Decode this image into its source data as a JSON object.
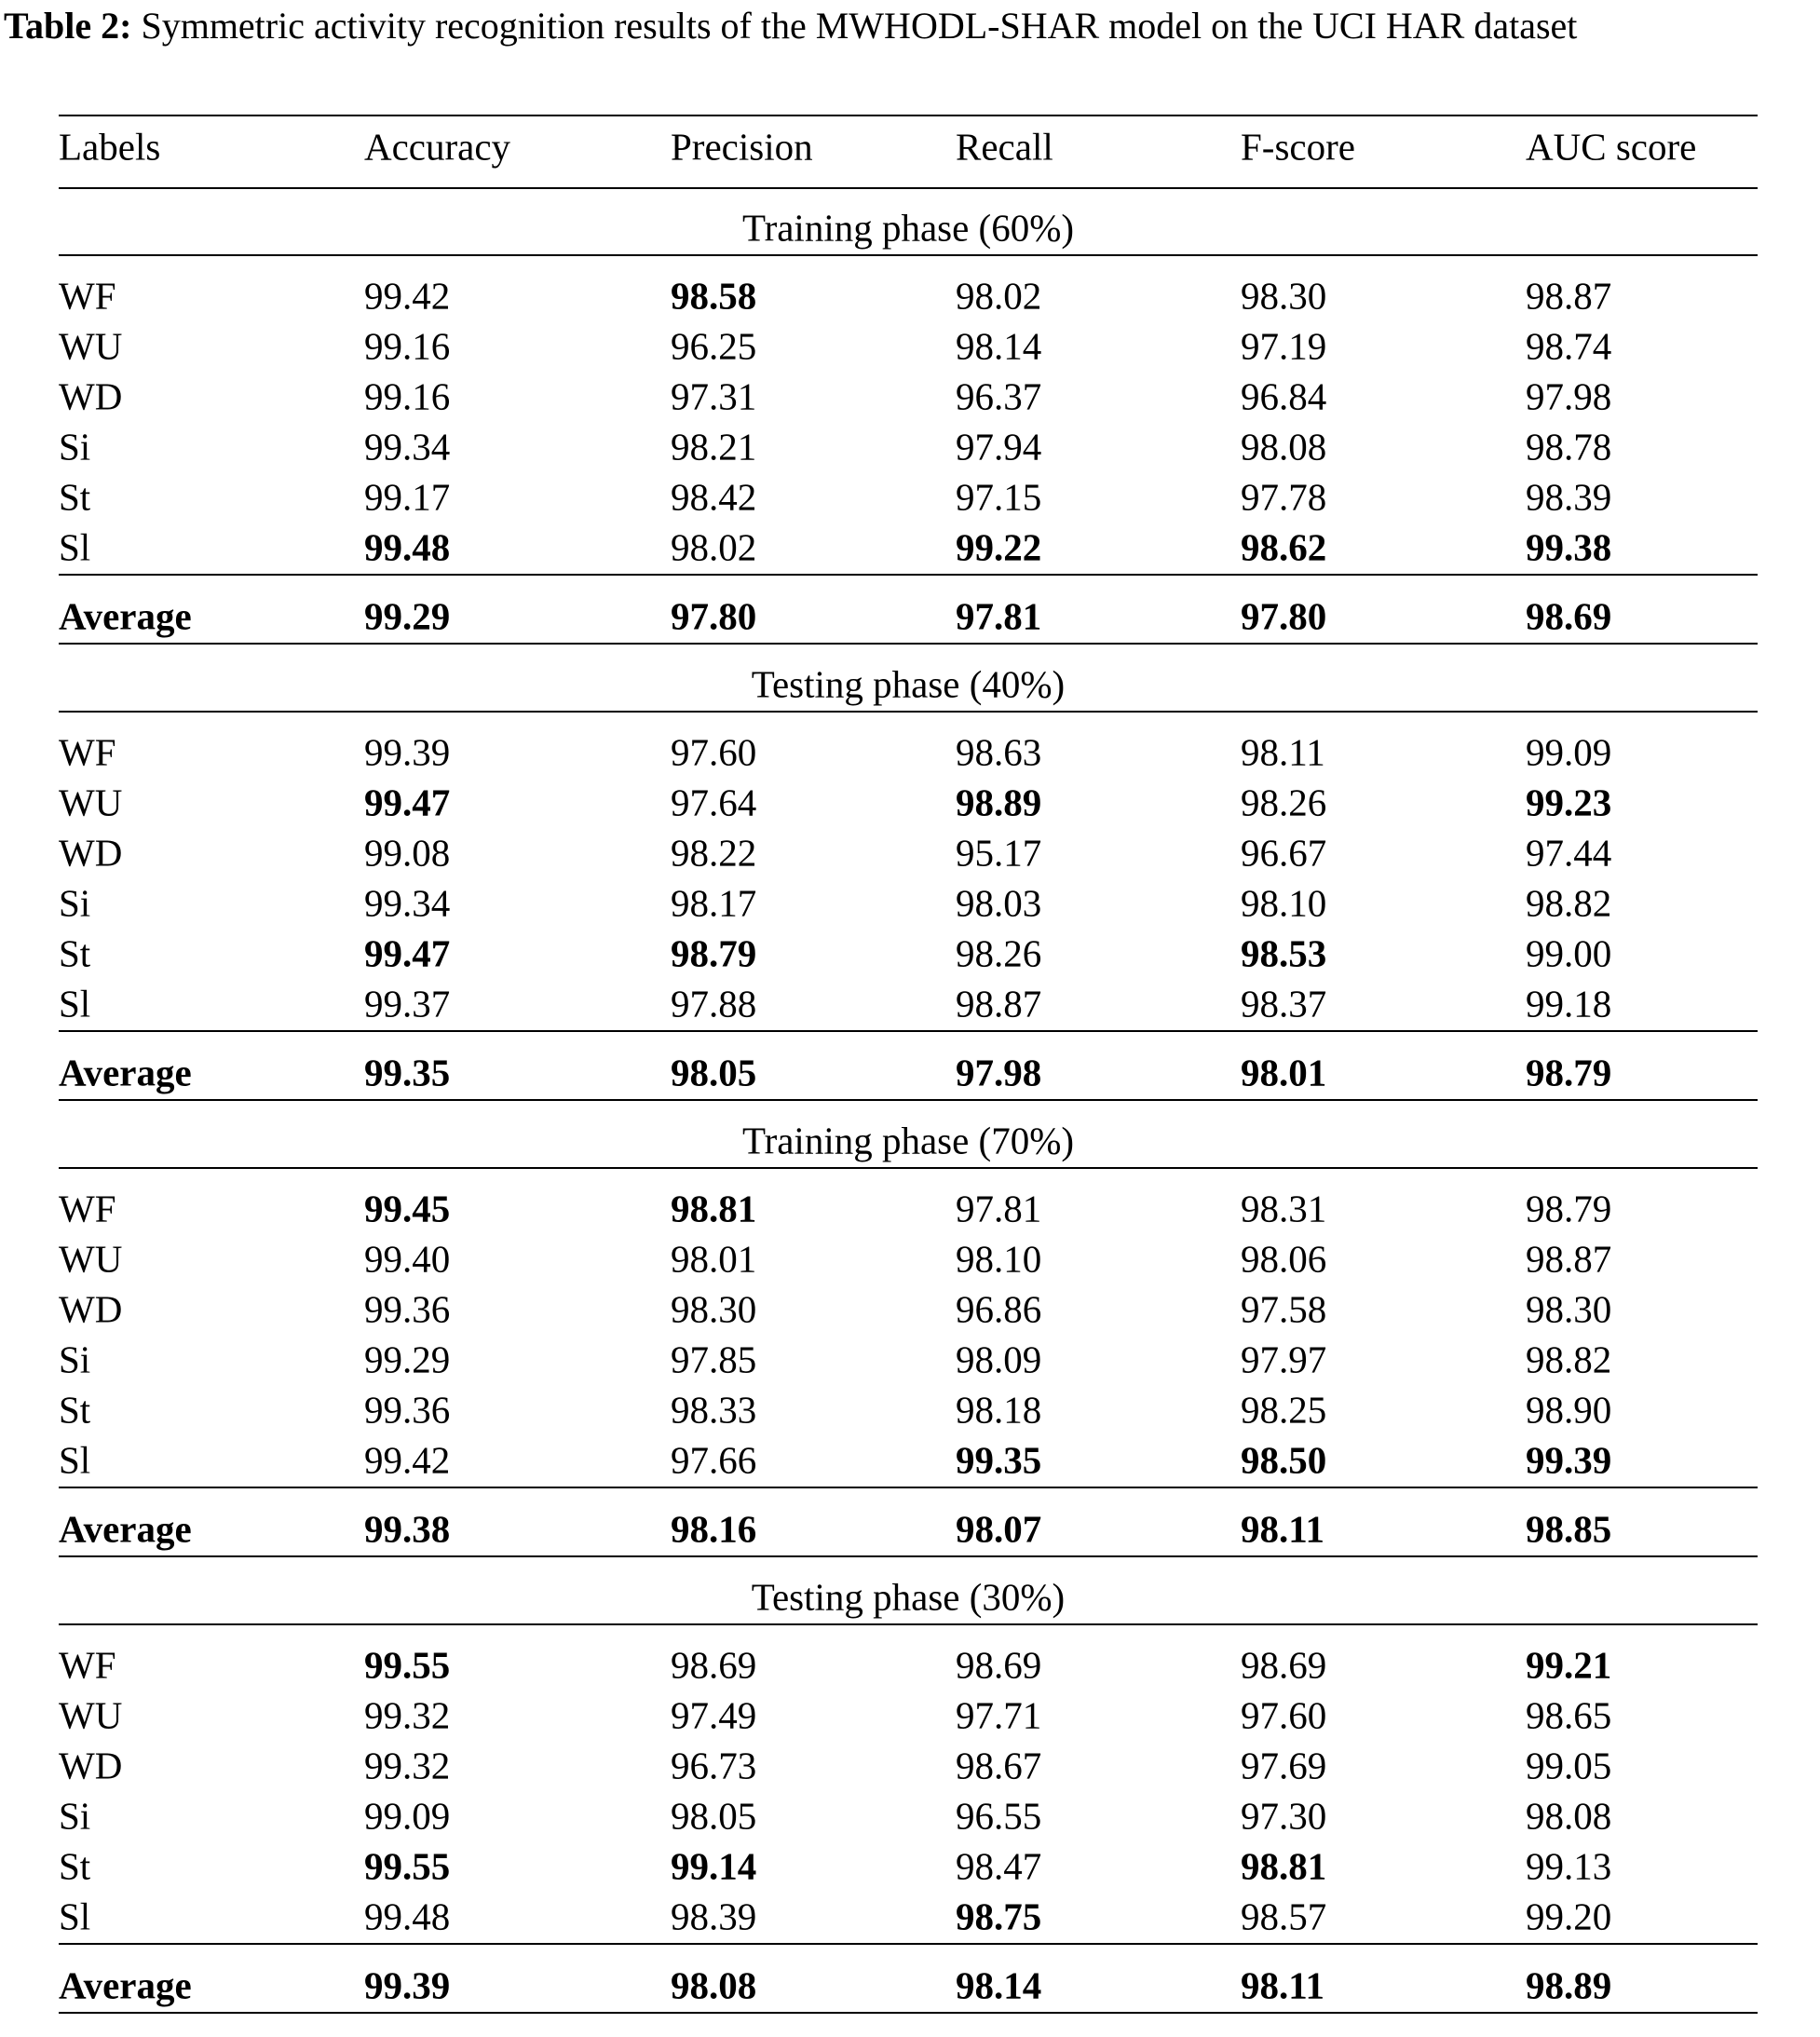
{
  "caption": {
    "label": "Table 2:",
    "text": "Symmetric activity recognition results of the MWHODL-SHAR model on the UCI HAR dataset"
  },
  "table": {
    "header": [
      "Labels",
      "Accuracy",
      "Precision",
      "Recall",
      "F-score",
      "AUC score"
    ],
    "sections": [
      {
        "title": "Training phase (60%)",
        "rows": [
          [
            "WF",
            "99.42",
            {
              "text": "98.58",
              "bold": true
            },
            "98.02",
            "98.30",
            "98.87"
          ],
          [
            "WU",
            "99.16",
            "96.25",
            "98.14",
            "97.19",
            "98.74"
          ],
          [
            "WD",
            "99.16",
            "97.31",
            "96.37",
            "96.84",
            "97.98"
          ],
          [
            "Si",
            "99.34",
            "98.21",
            "97.94",
            "98.08",
            "98.78"
          ],
          [
            "St",
            "99.17",
            "98.42",
            "97.15",
            "97.78",
            "98.39"
          ],
          [
            "Sl",
            {
              "text": "99.48",
              "bold": true
            },
            "98.02",
            {
              "text": "99.22",
              "bold": true
            },
            {
              "text": "98.62",
              "bold": true
            },
            {
              "text": "99.38",
              "bold": true
            }
          ]
        ],
        "average": {
          "bold": true,
          "cells": [
            "Average",
            "99.29",
            "97.80",
            "97.81",
            "97.80",
            "98.69"
          ]
        }
      },
      {
        "title": "Testing phase (40%)",
        "rows": [
          [
            "WF",
            "99.39",
            "97.60",
            "98.63",
            "98.11",
            "99.09"
          ],
          [
            "WU",
            {
              "text": "99.47",
              "bold": true
            },
            "97.64",
            {
              "text": "98.89",
              "bold": true
            },
            "98.26",
            {
              "text": "99.23",
              "bold": true
            }
          ],
          [
            "WD",
            "99.08",
            "98.22",
            "95.17",
            "96.67",
            "97.44"
          ],
          [
            "Si",
            "99.34",
            "98.17",
            "98.03",
            "98.10",
            "98.82"
          ],
          [
            "St",
            {
              "text": "99.47",
              "bold": true
            },
            {
              "text": "98.79",
              "bold": true
            },
            "98.26",
            {
              "text": "98.53",
              "bold": true
            },
            "99.00"
          ],
          [
            "Sl",
            "99.37",
            "97.88",
            "98.87",
            "98.37",
            "99.18"
          ]
        ],
        "average": {
          "bold": true,
          "cells": [
            "Average",
            "99.35",
            "98.05",
            "97.98",
            "98.01",
            "98.79"
          ]
        }
      },
      {
        "title": "Training phase (70%)",
        "rows": [
          [
            "WF",
            {
              "text": "99.45",
              "bold": true
            },
            {
              "text": "98.81",
              "bold": true
            },
            "97.81",
            "98.31",
            "98.79"
          ],
          [
            "WU",
            "99.40",
            "98.01",
            "98.10",
            "98.06",
            "98.87"
          ],
          [
            "WD",
            "99.36",
            "98.30",
            "96.86",
            "97.58",
            "98.30"
          ],
          [
            "Si",
            "99.29",
            "97.85",
            "98.09",
            "97.97",
            "98.82"
          ],
          [
            "St",
            "99.36",
            "98.33",
            "98.18",
            "98.25",
            "98.90"
          ],
          [
            "Sl",
            "99.42",
            "97.66",
            {
              "text": "99.35",
              "bold": true
            },
            {
              "text": "98.50",
              "bold": true
            },
            {
              "text": "99.39",
              "bold": true
            }
          ]
        ],
        "average": {
          "bold": true,
          "cells": [
            "Average",
            "99.38",
            "98.16",
            "98.07",
            "98.11",
            "98.85"
          ]
        }
      },
      {
        "title": "Testing phase (30%)",
        "rows": [
          [
            "WF",
            {
              "text": "99.55",
              "bold": true
            },
            "98.69",
            "98.69",
            "98.69",
            {
              "text": "99.21",
              "bold": true
            }
          ],
          [
            "WU",
            "99.32",
            "97.49",
            "97.71",
            "97.60",
            "98.65"
          ],
          [
            "WD",
            "99.32",
            "96.73",
            "98.67",
            "97.69",
            "99.05"
          ],
          [
            "Si",
            "99.09",
            "98.05",
            "96.55",
            "97.30",
            "98.08"
          ],
          [
            "St",
            {
              "text": "99.55",
              "bold": true
            },
            {
              "text": "99.14",
              "bold": true
            },
            "98.47",
            {
              "text": "98.81",
              "bold": true
            },
            "99.13"
          ],
          [
            "Sl",
            "99.48",
            "98.39",
            {
              "text": "98.75",
              "bold": true
            },
            "98.57",
            "99.20"
          ]
        ],
        "average": {
          "bold": true,
          "cells": [
            "Average",
            "99.39",
            "98.08",
            "98.14",
            "98.11",
            "98.89"
          ]
        }
      }
    ]
  }
}
